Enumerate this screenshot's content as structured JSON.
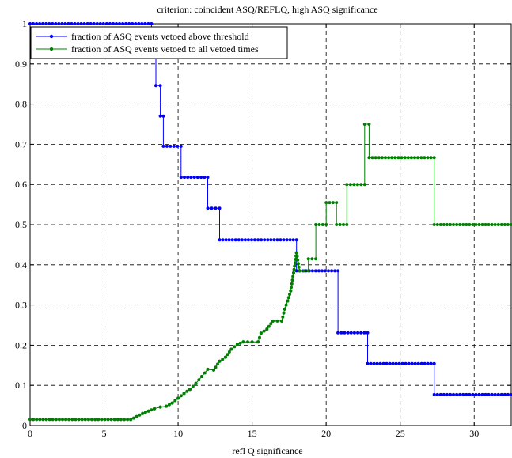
{
  "chart_data": {
    "type": "line",
    "title": "criterion: coincident ASQ/REFLQ, high ASQ significance",
    "xlabel": "refl Q significance",
    "ylabel": "",
    "xlim": [
      0,
      32.5
    ],
    "ylim": [
      0,
      1
    ],
    "xticks": [
      0,
      5,
      10,
      15,
      20,
      25,
      30
    ],
    "yticks": [
      0,
      0.1,
      0.2,
      0.3,
      0.4,
      0.5,
      0.6,
      0.7,
      0.8,
      0.9,
      1
    ],
    "grid": true,
    "grid_style": "dashed",
    "legend_position": "top-left",
    "series": [
      {
        "name": "fraction of ASQ events vetoed above threshold",
        "color": "#0000ff",
        "marker": "dot",
        "style": "step",
        "points": [
          [
            0,
            1
          ],
          [
            8.2,
            1
          ],
          [
            8.2,
            0.92
          ],
          [
            8.5,
            0.92
          ],
          [
            8.5,
            0.846
          ],
          [
            8.8,
            0.846
          ],
          [
            8.8,
            0.77
          ],
          [
            9.0,
            0.77
          ],
          [
            9.0,
            0.695
          ],
          [
            10.2,
            0.695
          ],
          [
            10.2,
            0.618
          ],
          [
            12.0,
            0.618
          ],
          [
            12.0,
            0.541
          ],
          [
            12.8,
            0.541
          ],
          [
            12.8,
            0.462
          ],
          [
            18.0,
            0.462
          ],
          [
            18.0,
            0.385
          ],
          [
            20.8,
            0.385
          ],
          [
            20.8,
            0.231
          ],
          [
            22.8,
            0.231
          ],
          [
            22.8,
            0.154
          ],
          [
            27.3,
            0.154
          ],
          [
            27.3,
            0.077
          ],
          [
            32.5,
            0.077
          ]
        ]
      },
      {
        "name": "fraction of ASQ events vetoed to all vetoed times",
        "color": "#008000",
        "marker": "dot",
        "style": "line",
        "points": [
          [
            0,
            0.015
          ],
          [
            6.8,
            0.015
          ],
          [
            7.2,
            0.022
          ],
          [
            7.6,
            0.03
          ],
          [
            8.0,
            0.036
          ],
          [
            8.4,
            0.042
          ],
          [
            8.8,
            0.046
          ],
          [
            9.2,
            0.048
          ],
          [
            9.6,
            0.056
          ],
          [
            10.0,
            0.068
          ],
          [
            10.4,
            0.08
          ],
          [
            10.8,
            0.09
          ],
          [
            11.2,
            0.105
          ],
          [
            11.6,
            0.122
          ],
          [
            12.0,
            0.14
          ],
          [
            12.4,
            0.138
          ],
          [
            12.8,
            0.16
          ],
          [
            13.2,
            0.17
          ],
          [
            13.6,
            0.19
          ],
          [
            14.0,
            0.202
          ],
          [
            14.4,
            0.208
          ],
          [
            15.0,
            0.208
          ],
          [
            15.4,
            0.208
          ],
          [
            15.6,
            0.23
          ],
          [
            16.0,
            0.24
          ],
          [
            16.4,
            0.26
          ],
          [
            17.0,
            0.26
          ],
          [
            17.2,
            0.29
          ],
          [
            17.4,
            0.31
          ],
          [
            17.6,
            0.335
          ],
          [
            17.8,
            0.38
          ],
          [
            18.0,
            0.43
          ],
          [
            18.2,
            0.385
          ],
          [
            18.8,
            0.385
          ],
          [
            18.8,
            0.415
          ],
          [
            19.3,
            0.415
          ],
          [
            19.3,
            0.5
          ],
          [
            20.0,
            0.5
          ],
          [
            20.0,
            0.555
          ],
          [
            20.7,
            0.555
          ],
          [
            20.7,
            0.5
          ],
          [
            21.4,
            0.5
          ],
          [
            21.4,
            0.6
          ],
          [
            22.6,
            0.6
          ],
          [
            22.6,
            0.75
          ],
          [
            22.9,
            0.75
          ],
          [
            22.9,
            0.667
          ],
          [
            27.3,
            0.667
          ],
          [
            27.3,
            0.5
          ],
          [
            32.5,
            0.5
          ]
        ]
      }
    ]
  }
}
